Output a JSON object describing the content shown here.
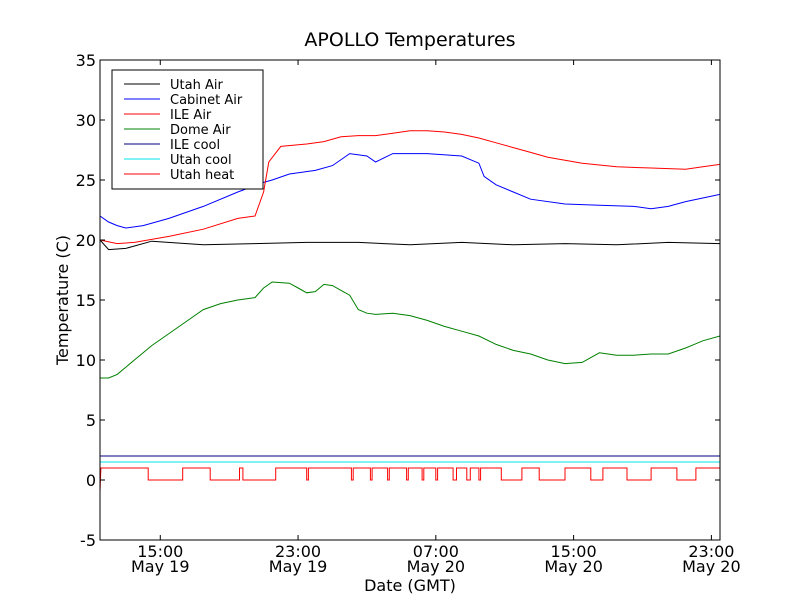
{
  "chart_data": {
    "type": "line",
    "title": "APOLLO Temperatures",
    "xlabel": "Date (GMT)",
    "ylabel": "Temperature (C)",
    "x_unit": "hours since May 19 11:30 GMT",
    "xlim": [
      0,
      36
    ],
    "ylim": [
      -5,
      35
    ],
    "y_ticks": [
      -5,
      0,
      5,
      10,
      15,
      20,
      25,
      30,
      35
    ],
    "y_tick_labels": [
      "-5",
      "0",
      "5",
      "10",
      "15",
      "20",
      "25",
      "30",
      "35"
    ],
    "x_ticks": [
      {
        "x": 3.5,
        "time": "15:00",
        "date": "May 19"
      },
      {
        "x": 11.5,
        "time": "23:00",
        "date": "May 19"
      },
      {
        "x": 19.5,
        "time": "07:00",
        "date": "May 20"
      },
      {
        "x": 27.5,
        "time": "15:00",
        "date": "May 20"
      },
      {
        "x": 35.5,
        "time": "23:00",
        "date": "May 20"
      }
    ],
    "grid": false,
    "legend_position": "top-left",
    "series": [
      {
        "name": "Utah Air",
        "color": "#000000",
        "x": [
          0,
          0.5,
          1.5,
          3.0,
          6.0,
          9.0,
          12.0,
          15.0,
          18.0,
          21.0,
          24.0,
          27.0,
          30.0,
          33.0,
          36.0
        ],
        "values": [
          20.0,
          19.2,
          19.3,
          19.9,
          19.6,
          19.7,
          19.8,
          19.8,
          19.6,
          19.8,
          19.6,
          19.7,
          19.6,
          19.8,
          19.7
        ]
      },
      {
        "name": "Cabinet Air",
        "color": "#0000ff",
        "x": [
          0,
          0.5,
          1.0,
          1.5,
          2.5,
          4.0,
          6.0,
          8.0,
          9.5,
          10.0,
          11.0,
          12.5,
          13.5,
          14.5,
          15.5,
          16.0,
          17.0,
          19.0,
          21.0,
          22.0,
          22.3,
          23.0,
          24.0,
          25.0,
          27.0,
          29.0,
          31.0,
          32.0,
          33.0,
          34.0,
          35.0,
          36.0
        ],
        "values": [
          22.0,
          21.5,
          21.2,
          21.0,
          21.2,
          21.8,
          22.8,
          24.0,
          24.8,
          25.0,
          25.5,
          25.8,
          26.2,
          27.2,
          27.0,
          26.5,
          27.2,
          27.2,
          27.0,
          26.4,
          25.3,
          24.6,
          24.0,
          23.4,
          23.0,
          22.9,
          22.8,
          22.6,
          22.8,
          23.2,
          23.5,
          23.8
        ]
      },
      {
        "name": "ILE Air",
        "color": "#ff0000",
        "x": [
          0,
          1.0,
          2.0,
          4.0,
          6.0,
          8.0,
          9.0,
          9.5,
          9.8,
          10.5,
          12.0,
          13.0,
          14.0,
          15.0,
          16.0,
          17.0,
          18.0,
          19.0,
          20.0,
          21.0,
          22.0,
          23.0,
          24.0,
          25.0,
          26.0,
          28.0,
          30.0,
          32.0,
          34.0,
          35.0,
          36.0
        ],
        "values": [
          20.0,
          19.7,
          19.8,
          20.3,
          20.9,
          21.8,
          22.0,
          24.0,
          26.5,
          27.8,
          28.0,
          28.2,
          28.6,
          28.7,
          28.7,
          28.9,
          29.1,
          29.1,
          29.0,
          28.8,
          28.5,
          28.1,
          27.7,
          27.3,
          26.9,
          26.4,
          26.1,
          26.0,
          25.9,
          26.1,
          26.3
        ]
      },
      {
        "name": "Dome Air",
        "color": "#008000",
        "x": [
          0,
          0.5,
          1.0,
          2.0,
          3.0,
          4.0,
          5.0,
          6.0,
          7.0,
          8.0,
          9.0,
          9.5,
          10.0,
          11.0,
          11.5,
          12.0,
          12.5,
          13.0,
          13.5,
          14.0,
          14.5,
          15.0,
          15.5,
          16.0,
          17.0,
          18.0,
          19.0,
          20.0,
          21.0,
          22.0,
          23.0,
          24.0,
          25.0,
          26.0,
          27.0,
          28.0,
          29.0,
          30.0,
          31.0,
          32.0,
          33.0,
          34.0,
          34.5,
          35.0,
          36.0
        ],
        "values": [
          8.5,
          8.5,
          8.8,
          10.0,
          11.2,
          12.2,
          13.2,
          14.2,
          14.7,
          15.0,
          15.2,
          16.0,
          16.5,
          16.4,
          16.0,
          15.6,
          15.7,
          16.3,
          16.2,
          15.8,
          15.4,
          14.2,
          13.9,
          13.8,
          13.9,
          13.7,
          13.3,
          12.8,
          12.4,
          12.0,
          11.3,
          10.8,
          10.5,
          10.0,
          9.7,
          9.8,
          10.6,
          10.4,
          10.4,
          10.5,
          10.5,
          11.0,
          11.3,
          11.6,
          12.0
        ]
      },
      {
        "name": "ILE cool",
        "color": "#000080",
        "x": [
          0,
          36
        ],
        "values": [
          2.0,
          2.0
        ]
      },
      {
        "name": "Utah cool",
        "color": "#00e5ee",
        "x": [
          0,
          36
        ],
        "values": [
          1.5,
          1.5
        ]
      },
      {
        "name": "Utah heat",
        "color": "#ff0000",
        "x": [
          0,
          0.05,
          2.8,
          2.8,
          4.8,
          4.8,
          6.4,
          6.4,
          8.1,
          8.1,
          8.3,
          8.3,
          10.2,
          10.2,
          12.0,
          12.0,
          12.1,
          12.1,
          14.6,
          14.6,
          14.7,
          14.7,
          15.7,
          15.7,
          15.8,
          15.8,
          16.7,
          16.7,
          16.8,
          16.8,
          17.8,
          17.8,
          17.9,
          17.9,
          18.7,
          18.7,
          18.8,
          18.8,
          19.5,
          19.5,
          19.6,
          19.6,
          20.5,
          20.5,
          20.7,
          20.7,
          21.3,
          21.3,
          21.5,
          21.5,
          22.0,
          22.0,
          22.1,
          22.1,
          23.3,
          23.3,
          24.5,
          24.5,
          25.5,
          25.5,
          27.0,
          27.0,
          28.5,
          28.5,
          29.2,
          29.2,
          30.6,
          30.6,
          32.0,
          32.0,
          33.5,
          33.5,
          34.6,
          34.6,
          36.0
        ],
        "values": [
          -1.0,
          1.0,
          1.0,
          0,
          0,
          1.0,
          1.0,
          0,
          0,
          1.0,
          1.0,
          0,
          0,
          1.0,
          1.0,
          0,
          0,
          1.0,
          1.0,
          0,
          0,
          1.0,
          1.0,
          0,
          0,
          1.0,
          1.0,
          0,
          0,
          1.0,
          1.0,
          0,
          0,
          1.0,
          1.0,
          0,
          0,
          1.0,
          1.0,
          0,
          0,
          1.0,
          1.0,
          0,
          0,
          1.0,
          1.0,
          0,
          0,
          1.0,
          1.0,
          0,
          0,
          1.0,
          1.0,
          0,
          0,
          1.0,
          1.0,
          0,
          0,
          1.0,
          1.0,
          0,
          0,
          1.0,
          1.0,
          0,
          0,
          1.0,
          1.0,
          0,
          0,
          1.0,
          1.0
        ]
      }
    ]
  }
}
